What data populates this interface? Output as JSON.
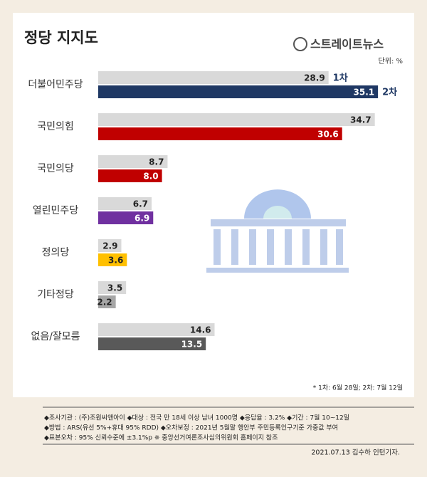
{
  "chart_data": {
    "type": "hbar",
    "title": "정당 지지도",
    "logo": "스트레이트뉴스",
    "unit_label": "단위: %",
    "categories": [
      "더불어민주당",
      "국민의힘",
      "국민의당",
      "열린민주당",
      "정의당",
      "기타정당",
      "없음/잘모름"
    ],
    "series": [
      {
        "name": "1차",
        "color": "#d9d9d9",
        "values": [
          28.9,
          34.7,
          8.7,
          6.7,
          2.9,
          3.5,
          14.6
        ],
        "value_labels": [
          "28.9",
          "34.7",
          "8.7",
          "6.7",
          "2.9",
          "3.5",
          "14.6"
        ]
      },
      {
        "name": "2차",
        "colors": [
          "#1f3864",
          "#c00000",
          "#c00000",
          "#7030a0",
          "#ffc000",
          "#a6a6a6",
          "#595959"
        ],
        "values": [
          35.1,
          30.6,
          8,
          6.9,
          3.6,
          2.2,
          13.5
        ],
        "value_labels": [
          "35.1",
          "30.6",
          "8.0",
          "6.9",
          "3.6",
          "2.2",
          "13.5"
        ]
      }
    ],
    "footnote": "* 1차: 6월 28일; 2차: 7월 12일",
    "notes": [
      "◆조사기관 : (주)조원씨앤아이 ◆대상 : 전국 만 18세 이상 남녀 1000명 ◆응답율 : 3.2% ◆기간 : 7월 10~12일",
      "◆방법 : ARS(유선 5%+휴대 95% RDD) ◆오차보정 : 2021년 5월말 행안부 주민등록인구기준 가중값 부여",
      "◆표본오차 : 95% 신뢰수준에 ±3.1%p ※ 중앙선거여론조사심의위원회 홈페이지 참조"
    ],
    "credit": "2021.07.13 김수하 인턴기자."
  }
}
